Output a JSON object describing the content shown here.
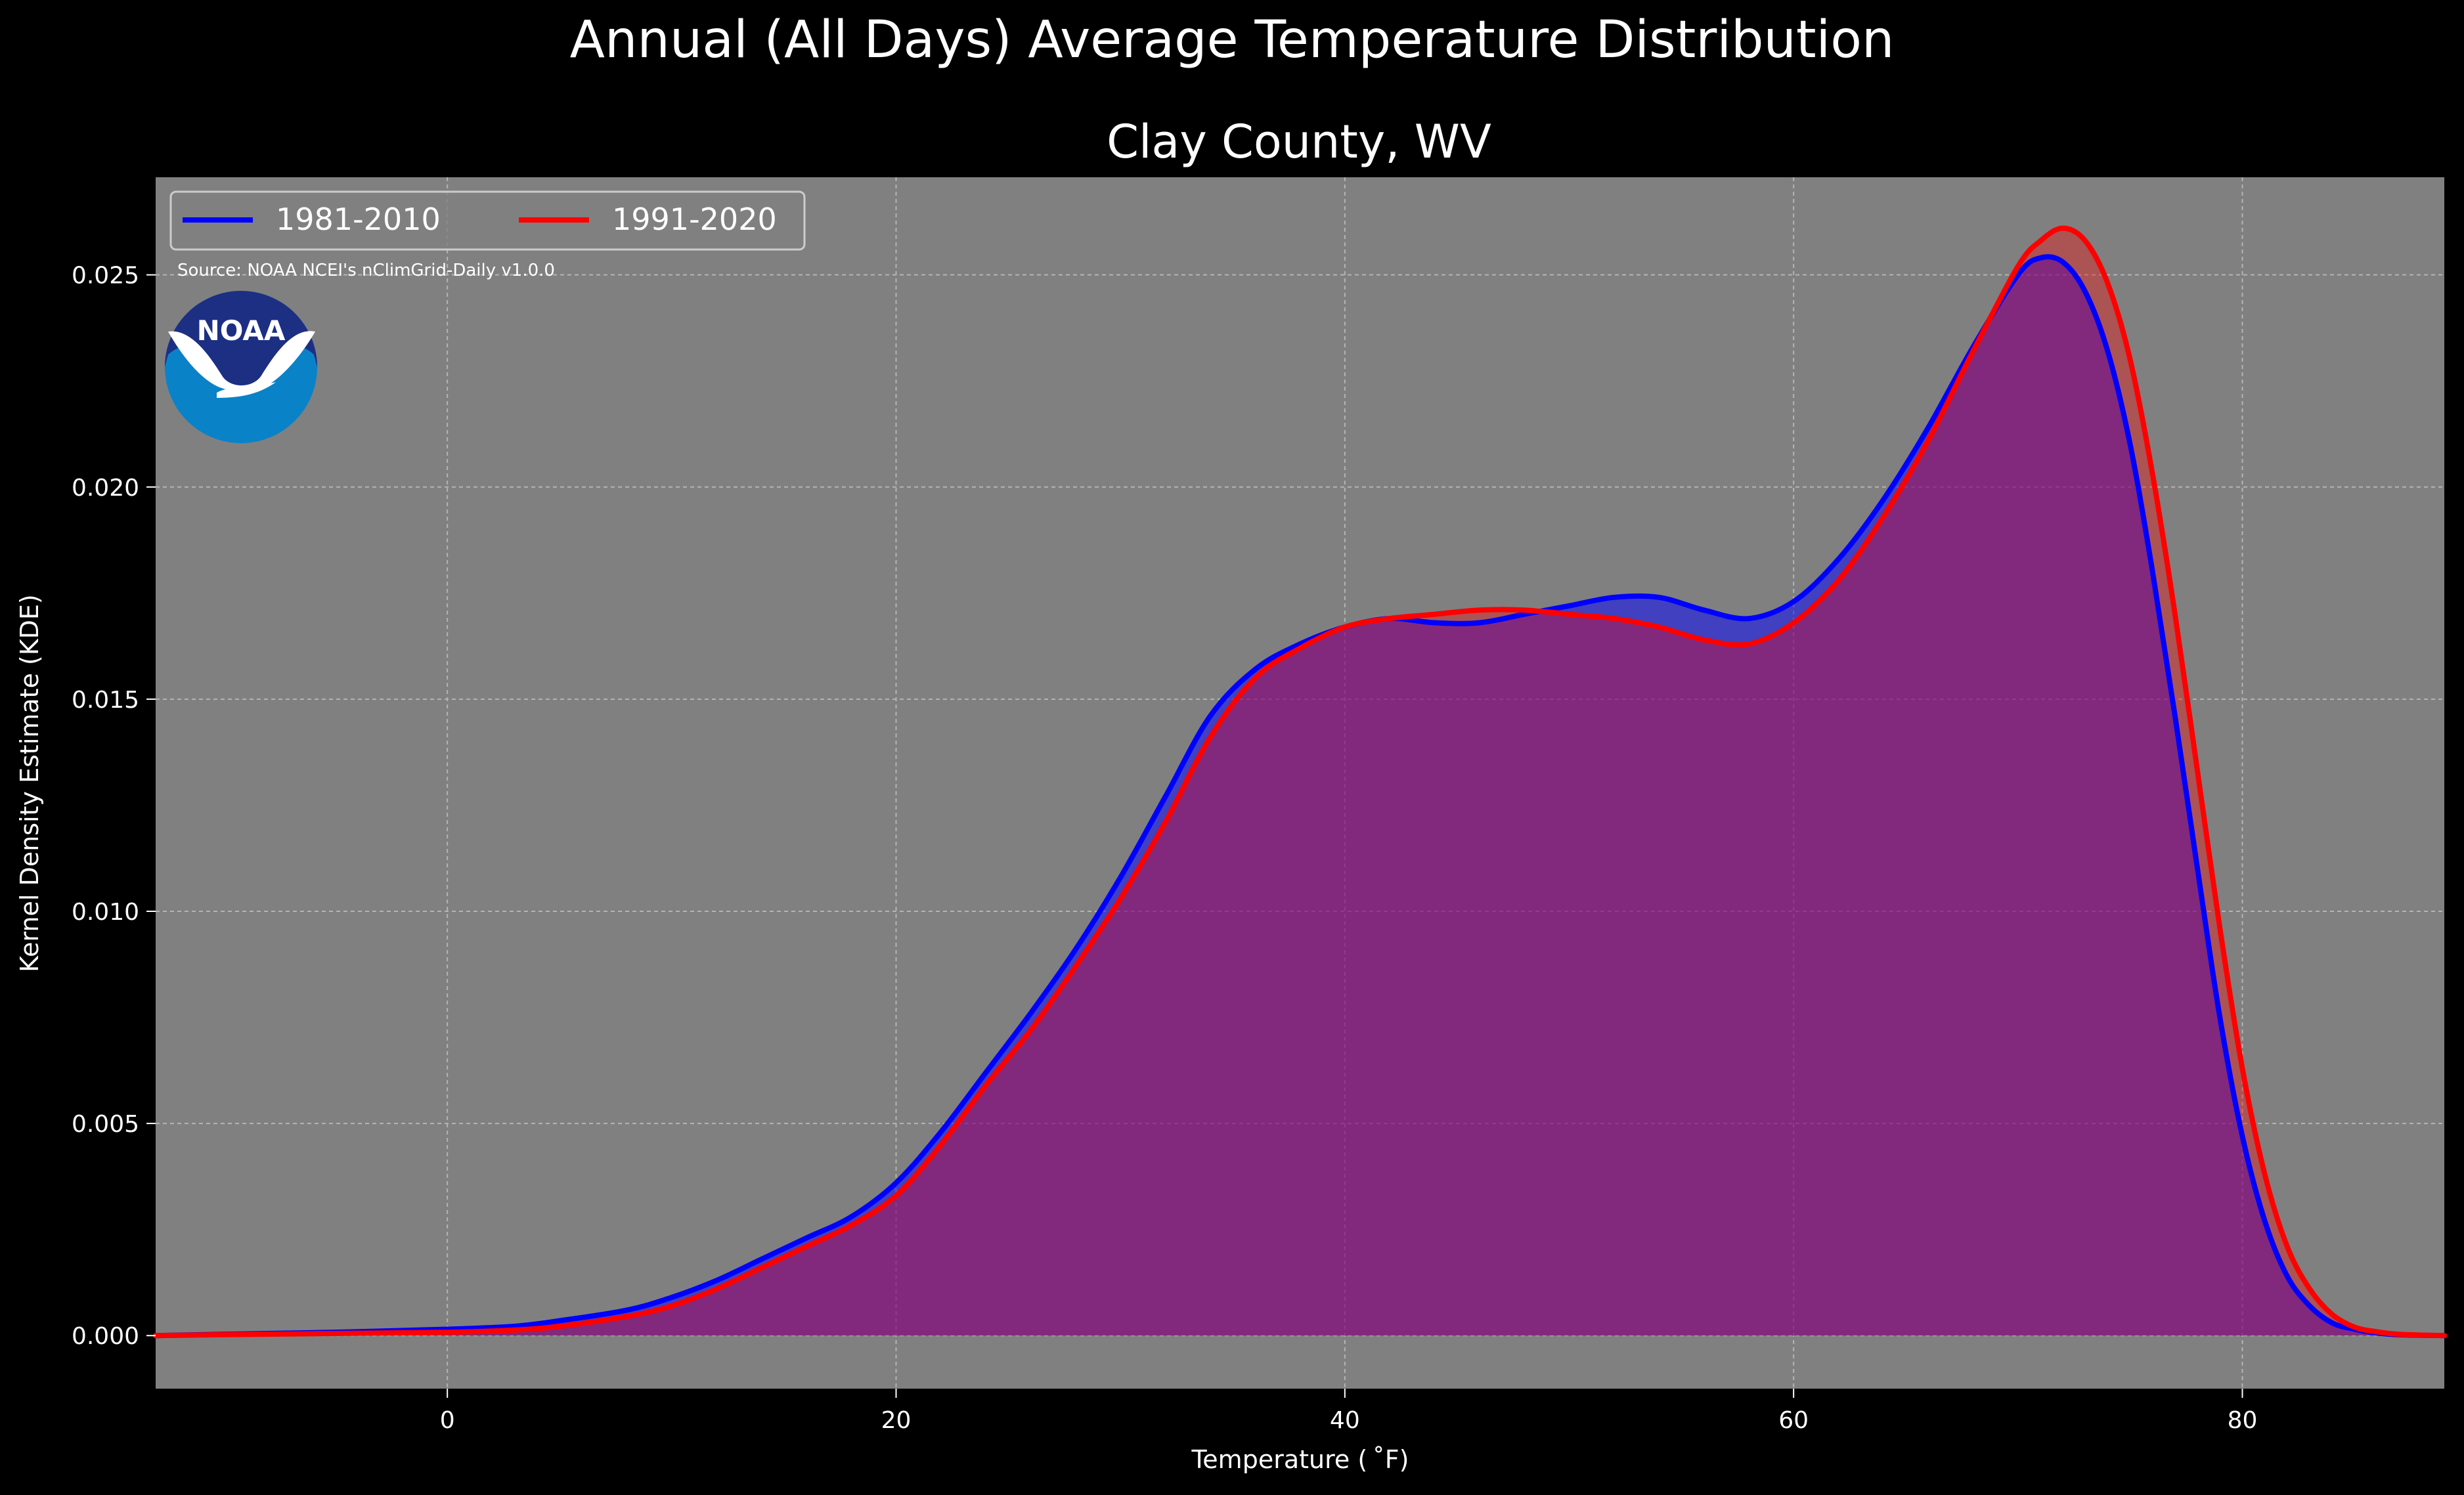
{
  "chart_data": {
    "type": "area",
    "suptitle": "Annual (All Days) Average Temperature Distribution",
    "title": "Clay County, WV",
    "xlabel": "Temperature ($^\\circ$F)",
    "xlabel_display": "Temperature ( ˚F)",
    "ylabel": "Kernel Density Estimate (KDE)",
    "xlim": [
      -13,
      89
    ],
    "ylim": [
      -0.00125,
      0.0273
    ],
    "xticks": [
      0,
      20,
      40,
      60,
      80
    ],
    "xtick_labels": [
      "0",
      "20",
      "40",
      "60",
      "80"
    ],
    "yticks": [
      0.0,
      0.005,
      0.01,
      0.015,
      0.02,
      0.025
    ],
    "ytick_labels": [
      "0.000",
      "0.005",
      "0.010",
      "0.015",
      "0.020",
      "0.025"
    ],
    "grid": true,
    "legend_position": "top-left",
    "source_note": "Source: NOAA NCEI's nClimGrid-Daily v1.0.0",
    "logo_text": "NOAA",
    "x": [
      -13,
      -10,
      -5,
      0,
      3,
      5,
      8,
      10,
      12,
      14,
      16,
      18,
      20,
      22,
      24,
      26,
      28,
      30,
      32,
      34,
      36,
      38,
      40,
      42,
      44,
      46,
      48,
      50,
      52,
      54,
      56,
      58,
      60,
      62,
      64,
      66,
      68,
      70,
      71,
      72,
      73,
      74,
      75,
      76,
      77,
      78,
      79,
      80,
      81,
      82,
      83,
      84,
      85,
      86,
      87,
      89
    ],
    "series": [
      {
        "name": "1981-2010",
        "color": "#0000ff",
        "fill": "rgba(0,0,255,0.5)",
        "values": [
          0.0,
          3e-05,
          8e-05,
          0.00015,
          0.00022,
          0.00035,
          0.0006,
          0.0009,
          0.0013,
          0.0018,
          0.0023,
          0.0028,
          0.0036,
          0.0048,
          0.0062,
          0.0076,
          0.0091,
          0.0108,
          0.0127,
          0.0146,
          0.0157,
          0.0163,
          0.0167,
          0.0169,
          0.0168,
          0.0168,
          0.017,
          0.0172,
          0.0174,
          0.0174,
          0.0171,
          0.0169,
          0.0173,
          0.0183,
          0.0197,
          0.0214,
          0.0233,
          0.025,
          0.0254,
          0.0253,
          0.0246,
          0.0232,
          0.021,
          0.018,
          0.0146,
          0.011,
          0.0075,
          0.0047,
          0.0027,
          0.0014,
          0.0007,
          0.0003,
          0.00015,
          6e-05,
          2e-05,
          0.0
        ]
      },
      {
        "name": "1991-2020",
        "color": "#ff0000",
        "fill": "rgba(255,0,0,0.35)",
        "values": [
          0.0,
          2e-05,
          5e-05,
          8e-05,
          0.00013,
          0.00022,
          0.00045,
          0.0007,
          0.0011,
          0.0016,
          0.0021,
          0.0026,
          0.0033,
          0.0045,
          0.0059,
          0.0072,
          0.0087,
          0.0103,
          0.0121,
          0.0141,
          0.0155,
          0.0162,
          0.0167,
          0.0169,
          0.017,
          0.0171,
          0.0171,
          0.017,
          0.0169,
          0.0167,
          0.0164,
          0.0163,
          0.0168,
          0.0178,
          0.0193,
          0.0211,
          0.0232,
          0.0252,
          0.0258,
          0.0261,
          0.0258,
          0.0248,
          0.023,
          0.0203,
          0.017,
          0.0133,
          0.0096,
          0.0063,
          0.0038,
          0.0021,
          0.0011,
          0.0005,
          0.0002,
          9e-05,
          3e-05,
          0.0
        ]
      }
    ]
  }
}
